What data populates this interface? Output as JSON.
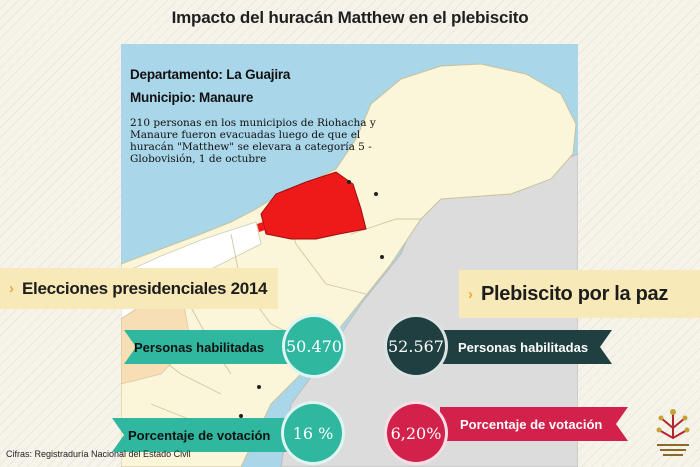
{
  "title": "Impacto del huracán Matthew en el plebiscito",
  "info": {
    "departamento": "Departamento: La Guajira",
    "municipio": "Municipio: Manaure",
    "note": "210 personas en los municipios de Riohacha y Manaure fueron evacuadas luego de que el huracán \"Matthew\" se elevara a categoría 5 - Globovisión, 1 de octubre"
  },
  "elecciones": {
    "heading": "Elecciones presidenciales 2014",
    "habilitadas_label": "Personas habilitadas",
    "habilitadas_value": "50.470",
    "votacion_label": "Porcentaje de votación",
    "votacion_value": "16 %"
  },
  "plebiscito": {
    "heading": "Plebiscito por la paz",
    "habilitadas_label": "Personas habilitadas",
    "habilitadas_value": "52.567",
    "votacion_label": "Porcentaje de votación",
    "votacion_value": "6,20%"
  },
  "source": "Cifras: Registraduría Nacional del Estado Civil",
  "colors": {
    "teal": "#2fb7a0",
    "dark_teal": "#1f3f40",
    "crimson": "#d2214a",
    "banner": "#f8eab8",
    "sea": "#a9d6e8",
    "land": "#fbf6d9",
    "highlight": "#ee1a1a"
  },
  "icons": {
    "chevron": "chevron-right-icon",
    "logo": "logo-icon"
  }
}
